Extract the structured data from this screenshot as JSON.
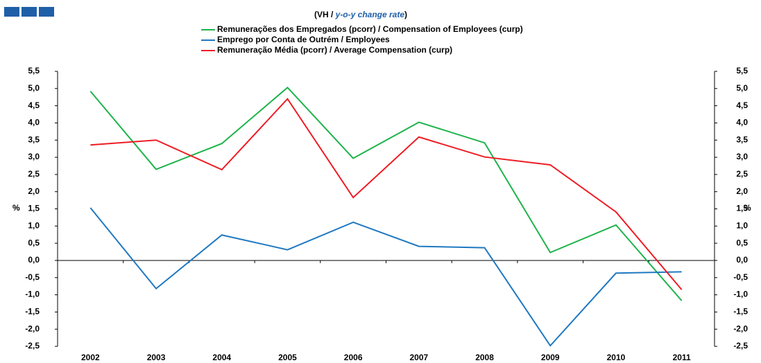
{
  "chart_data": {
    "type": "line",
    "subtitle": [
      "(VH / ",
      "y-o-y change rate",
      ")"
    ],
    "y_label": "%",
    "categories": [
      "2002",
      "2003",
      "2004",
      "2005",
      "2006",
      "2007",
      "2008",
      "2009",
      "2010",
      "2011"
    ],
    "series": [
      {
        "name": "Remunerações dos Empregados (pcorr) / Compensation of Employees (curp)",
        "color": "#1db34a",
        "values": [
          4.92,
          2.65,
          3.4,
          5.03,
          2.97,
          4.02,
          3.42,
          0.23,
          1.03,
          -1.17
        ]
      },
      {
        "name": "Emprego por Conta de Outrém / Employees",
        "color": "#1f78c1",
        "values": [
          1.53,
          -0.82,
          0.74,
          0.31,
          1.11,
          0.41,
          0.37,
          -2.48,
          -0.37,
          -0.33
        ]
      },
      {
        "name": "Remuneração Média (pcorr) / Average Compensation (curp)",
        "color": "#ee1c24",
        "values": [
          3.36,
          3.5,
          2.64,
          4.7,
          1.83,
          3.59,
          3.01,
          2.78,
          1.41,
          -0.85
        ]
      }
    ],
    "ylim": [
      -2.5,
      5.5
    ],
    "yticks": [
      {
        "value": -2.5,
        "label": "-2,5"
      },
      {
        "value": -2,
        "label": "-2,0"
      },
      {
        "value": -1.5,
        "label": "-1,5"
      },
      {
        "value": -1,
        "label": "-1,0"
      },
      {
        "value": -0.5,
        "label": "-0,5"
      },
      {
        "value": 0,
        "label": "0,0"
      },
      {
        "value": 0.5,
        "label": "0,5"
      },
      {
        "value": 1,
        "label": "1,0"
      },
      {
        "value": 1.5,
        "label": "1,5"
      },
      {
        "value": 2,
        "label": "2,0"
      },
      {
        "value": 2.5,
        "label": "2,5"
      },
      {
        "value": 3,
        "label": "3,0"
      },
      {
        "value": 3.5,
        "label": "3,5"
      },
      {
        "value": 4,
        "label": "4,0"
      },
      {
        "value": 4.5,
        "label": "4,5"
      },
      {
        "value": 5,
        "label": "5,0"
      },
      {
        "value": 5.5,
        "label": "5,5"
      }
    ],
    "grid": false
  }
}
